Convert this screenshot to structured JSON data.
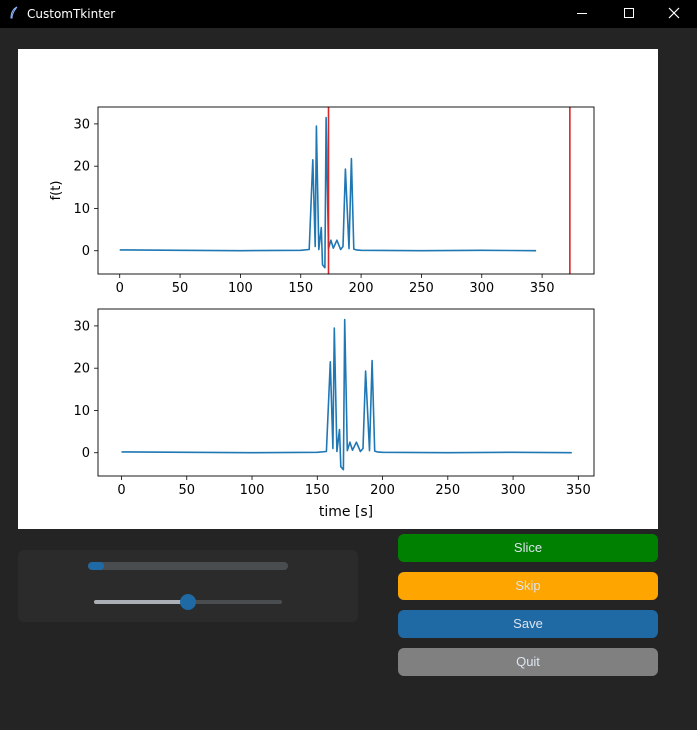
{
  "window": {
    "title": "CustomTkinter",
    "controls": [
      "minimize-icon",
      "maximize-icon",
      "close-icon"
    ]
  },
  "colors": {
    "titlebar": "#000000",
    "background": "#242424",
    "frame": "#2b2b2b",
    "accent": "#1f6aa5",
    "slice": "#008000",
    "skip": "#ffa500",
    "quit": "#808080",
    "line": "#1f77b4",
    "marker": "#d62728"
  },
  "buttons": {
    "slice": "Slice",
    "skip": "Skip",
    "save": "Save",
    "quit": "Quit"
  },
  "controls": {
    "progress": 0.08,
    "slider": 0.5
  },
  "chart_data": [
    {
      "type": "line",
      "ylabel": "f(t)",
      "xlabel": "",
      "xlim": [
        -18,
        393
      ],
      "ylim": [
        -5.5,
        34
      ],
      "xticks": [
        0,
        50,
        100,
        150,
        200,
        250,
        300,
        350
      ],
      "yticks": [
        0,
        10,
        20,
        30
      ],
      "vlines": [
        173,
        373
      ],
      "x": [
        0,
        50,
        100,
        150,
        157,
        160,
        162,
        163,
        165,
        167,
        168,
        170,
        171,
        173,
        175,
        177,
        180,
        183,
        185,
        187,
        190,
        192,
        194,
        196,
        200,
        250,
        300,
        345
      ],
      "y": [
        0.2,
        0.1,
        0.0,
        0.1,
        0.3,
        21.5,
        1.0,
        29.5,
        0.3,
        5.5,
        -3.3,
        -4.0,
        31.5,
        0.5,
        2.5,
        0.6,
        2.5,
        0.3,
        1.0,
        19.3,
        0.5,
        21.8,
        0.4,
        0.2,
        0.1,
        0.0,
        0.1,
        0.0
      ]
    },
    {
      "type": "line",
      "xlabel": "time [s]",
      "ylabel": "",
      "xlim": [
        -18,
        362
      ],
      "ylim": [
        -5.5,
        34
      ],
      "xticks": [
        0,
        50,
        100,
        150,
        200,
        250,
        300,
        350
      ],
      "yticks": [
        0,
        10,
        20,
        30
      ],
      "vlines": [],
      "x": [
        0,
        50,
        100,
        150,
        157,
        160,
        162,
        163,
        165,
        167,
        168,
        170,
        171,
        173,
        175,
        177,
        180,
        183,
        185,
        187,
        190,
        192,
        194,
        196,
        200,
        250,
        300,
        345
      ],
      "y": [
        0.2,
        0.1,
        0.0,
        0.1,
        0.3,
        21.5,
        1.0,
        29.5,
        0.3,
        5.5,
        -3.3,
        -4.0,
        31.5,
        0.5,
        2.5,
        0.6,
        2.5,
        0.3,
        1.0,
        19.3,
        0.5,
        21.8,
        0.4,
        0.2,
        0.1,
        0.0,
        0.1,
        0.0
      ]
    }
  ]
}
